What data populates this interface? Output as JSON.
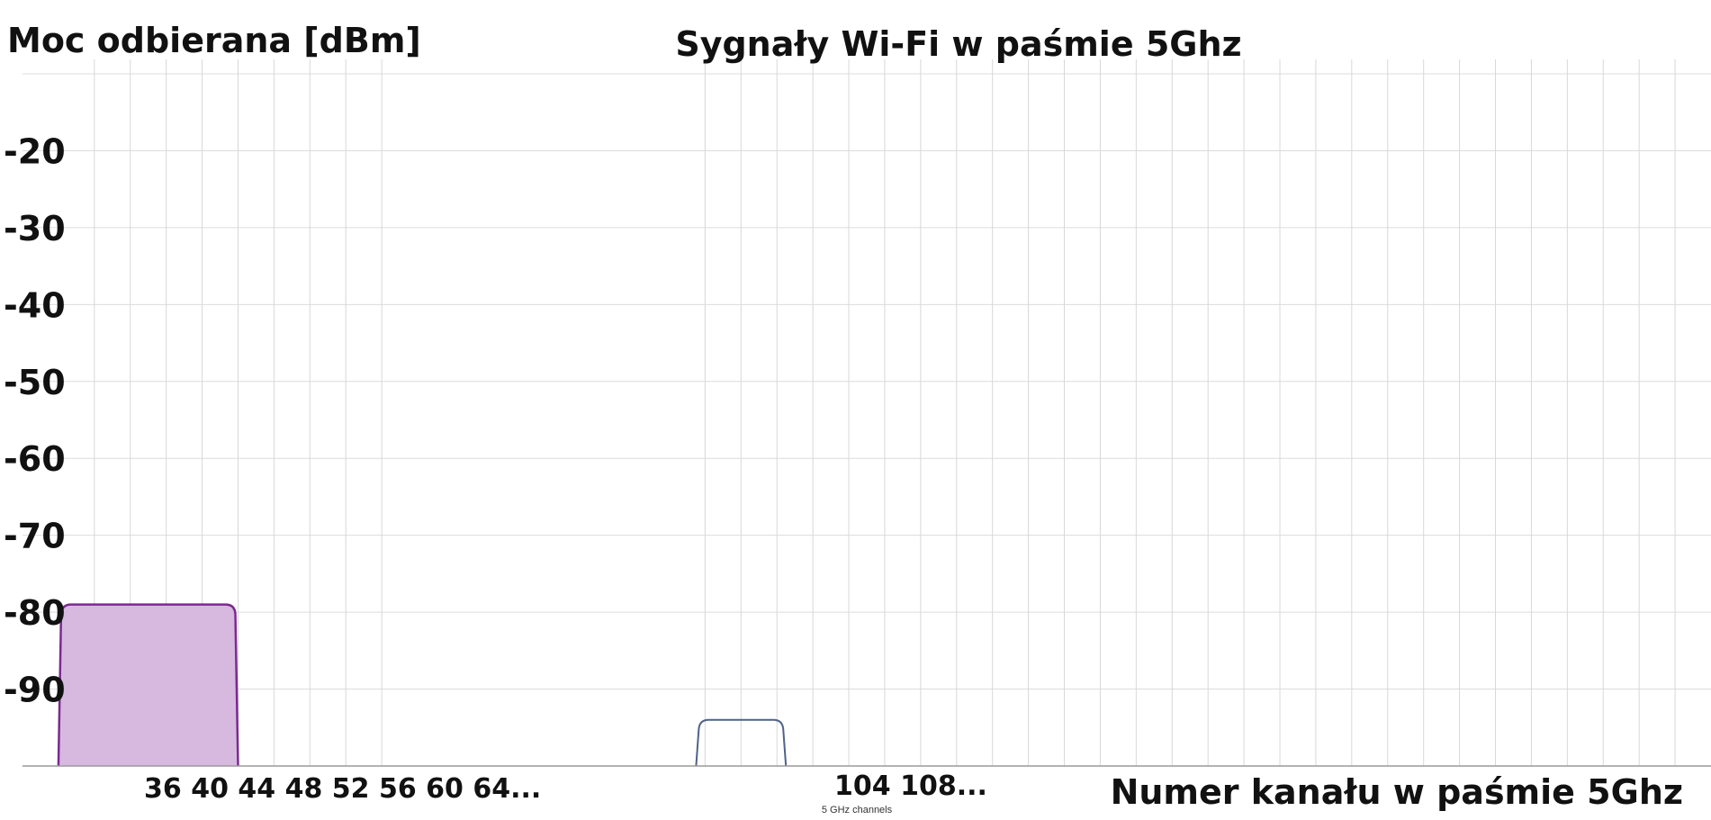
{
  "chart_data": {
    "type": "area",
    "title": "Sygnały Wi-Fi w paśmie 5Ghz",
    "ylabel": "Moc odbierana [dBm]",
    "xlabel": "Numer kanału w paśmie 5Ghz",
    "footnote": "5 GHz channels",
    "xlim": [
      24,
      212
    ],
    "ylim": [
      -100,
      -10
    ],
    "y_ticks": [
      "-20",
      "-30",
      "-40",
      "-50",
      "-60",
      "-70",
      "-80",
      "-90"
    ],
    "x_tick_groups": [
      "36 40 44 48 52 56 60 64...",
      "104 108..."
    ],
    "grid": true,
    "series": [
      {
        "color": "#7b2a8f",
        "fill": "#d7b9e0",
        "x_start": 28,
        "x_end": 48,
        "value": -79,
        "filled": true
      },
      {
        "color": "#4f6288",
        "fill": "none",
        "x_start": 99,
        "x_end": 109,
        "value": -94,
        "filled": false
      }
    ]
  }
}
